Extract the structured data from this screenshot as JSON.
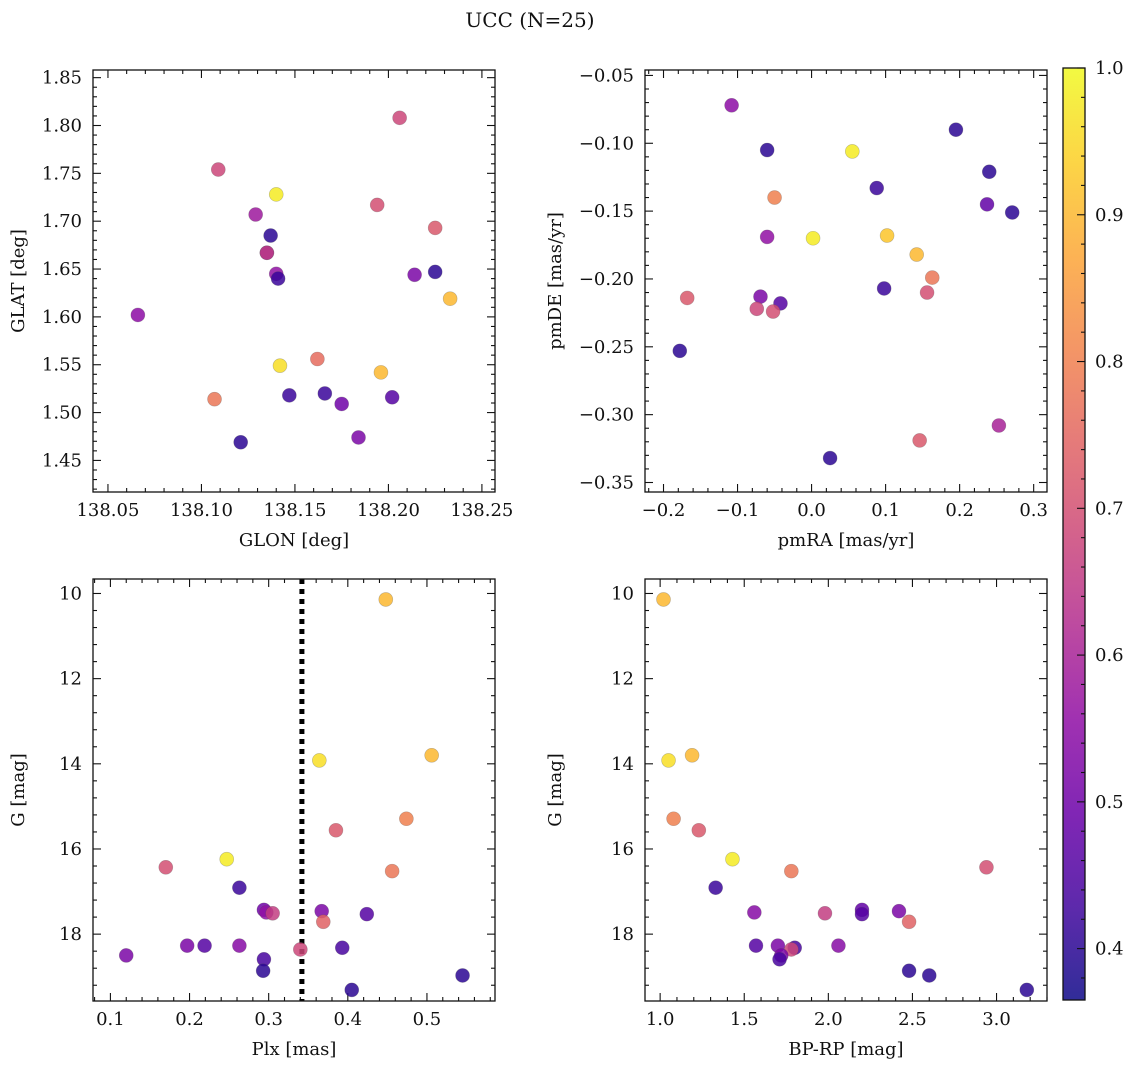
{
  "figure": {
    "title": "UCC (N=25)"
  },
  "colorbar": {
    "range": [
      0.365,
      1.0
    ],
    "ticks": [
      0.4,
      0.5,
      0.6,
      0.7,
      0.8,
      0.9,
      1.0
    ],
    "tick_labels": [
      "0.4",
      "0.5",
      "0.6",
      "0.7",
      "0.8",
      "0.9",
      "1.0"
    ],
    "colormap": "plasma"
  },
  "chart_data": [
    {
      "type": "scatter",
      "id": "glon-glat",
      "xlabel": "GLON [deg]",
      "ylabel": "GLAT [deg]",
      "xlim": [
        138.042,
        138.257
      ],
      "ylim": [
        1.417,
        1.858
      ],
      "xticks": [
        138.05,
        138.1,
        138.15,
        138.2,
        138.25
      ],
      "xtick_labels": [
        "138.05",
        "138.10",
        "138.15",
        "138.20",
        "138.25"
      ],
      "yticks": [
        1.45,
        1.5,
        1.55,
        1.6,
        1.65,
        1.7,
        1.75,
        1.8,
        1.85
      ],
      "ytick_labels": [
        "1.45",
        "1.50",
        "1.55",
        "1.60",
        "1.65",
        "1.70",
        "1.75",
        "1.80",
        "1.85"
      ],
      "points": [
        {
          "x": 138.066,
          "y": 1.602,
          "c": 0.55
        },
        {
          "x": 138.109,
          "y": 1.754,
          "c": 0.68
        },
        {
          "x": 138.129,
          "y": 1.707,
          "c": 0.58
        },
        {
          "x": 138.14,
          "y": 1.728,
          "c": 0.98
        },
        {
          "x": 138.137,
          "y": 1.685,
          "c": 0.4
        },
        {
          "x": 138.135,
          "y": 1.667,
          "c": 0.48
        },
        {
          "x": 138.135,
          "y": 1.667,
          "c": 0.66
        },
        {
          "x": 138.14,
          "y": 1.645,
          "c": 0.56
        },
        {
          "x": 138.141,
          "y": 1.64,
          "c": 0.42
        },
        {
          "x": 138.206,
          "y": 1.808,
          "c": 0.68
        },
        {
          "x": 138.194,
          "y": 1.717,
          "c": 0.7
        },
        {
          "x": 138.225,
          "y": 1.693,
          "c": 0.72
        },
        {
          "x": 138.214,
          "y": 1.644,
          "c": 0.52
        },
        {
          "x": 138.225,
          "y": 1.647,
          "c": 0.4
        },
        {
          "x": 138.233,
          "y": 1.619,
          "c": 0.9
        },
        {
          "x": 138.142,
          "y": 1.549,
          "c": 0.96
        },
        {
          "x": 138.162,
          "y": 1.556,
          "c": 0.76
        },
        {
          "x": 138.196,
          "y": 1.542,
          "c": 0.9
        },
        {
          "x": 138.107,
          "y": 1.514,
          "c": 0.78
        },
        {
          "x": 138.147,
          "y": 1.518,
          "c": 0.42
        },
        {
          "x": 138.166,
          "y": 1.52,
          "c": 0.42
        },
        {
          "x": 138.175,
          "y": 1.509,
          "c": 0.5
        },
        {
          "x": 138.202,
          "y": 1.516,
          "c": 0.46
        },
        {
          "x": 138.184,
          "y": 1.474,
          "c": 0.52
        },
        {
          "x": 138.121,
          "y": 1.469,
          "c": 0.4
        }
      ]
    },
    {
      "type": "scatter",
      "id": "pmra-pmde",
      "xlabel": "pmRA [mas/yr]",
      "ylabel": "pmDE [mas/yr]",
      "xlim": [
        -0.225,
        0.318
      ],
      "ylim": [
        -0.357,
        -0.046
      ],
      "xticks": [
        -0.2,
        -0.1,
        0.0,
        0.1,
        0.2,
        0.3
      ],
      "xtick_labels": [
        "−0.2",
        "−0.1",
        "0.0",
        "0.1",
        "0.2",
        "0.3"
      ],
      "yticks": [
        -0.35,
        -0.3,
        -0.25,
        -0.2,
        -0.15,
        -0.1,
        -0.05
      ],
      "ytick_labels": [
        "−0.35",
        "−0.30",
        "−0.25",
        "−0.20",
        "−0.15",
        "−0.10",
        "−0.05"
      ],
      "points": [
        {
          "x": -0.108,
          "y": -0.072,
          "c": 0.55
        },
        {
          "x": -0.06,
          "y": -0.105,
          "c": 0.4
        },
        {
          "x": 0.055,
          "y": -0.106,
          "c": 0.98
        },
        {
          "x": 0.195,
          "y": -0.09,
          "c": 0.4
        },
        {
          "x": 0.24,
          "y": -0.121,
          "c": 0.4
        },
        {
          "x": 0.088,
          "y": -0.133,
          "c": 0.42
        },
        {
          "x": -0.05,
          "y": -0.14,
          "c": 0.8
        },
        {
          "x": 0.237,
          "y": -0.145,
          "c": 0.48
        },
        {
          "x": 0.271,
          "y": -0.151,
          "c": 0.4
        },
        {
          "x": -0.06,
          "y": -0.169,
          "c": 0.56
        },
        {
          "x": 0.002,
          "y": -0.17,
          "c": 0.98
        },
        {
          "x": 0.102,
          "y": -0.168,
          "c": 0.92
        },
        {
          "x": 0.142,
          "y": -0.182,
          "c": 0.9
        },
        {
          "x": 0.163,
          "y": -0.199,
          "c": 0.78
        },
        {
          "x": 0.098,
          "y": -0.207,
          "c": 0.42
        },
        {
          "x": 0.156,
          "y": -0.21,
          "c": 0.7
        },
        {
          "x": -0.168,
          "y": -0.214,
          "c": 0.72
        },
        {
          "x": -0.069,
          "y": -0.213,
          "c": 0.52
        },
        {
          "x": -0.042,
          "y": -0.218,
          "c": 0.46
        },
        {
          "x": -0.074,
          "y": -0.222,
          "c": 0.68
        },
        {
          "x": -0.052,
          "y": -0.224,
          "c": 0.7
        },
        {
          "x": -0.178,
          "y": -0.253,
          "c": 0.4
        },
        {
          "x": 0.253,
          "y": -0.308,
          "c": 0.6
        },
        {
          "x": 0.146,
          "y": -0.319,
          "c": 0.72
        },
        {
          "x": 0.025,
          "y": -0.332,
          "c": 0.4
        }
      ]
    },
    {
      "type": "scatter",
      "id": "plx-g",
      "xlabel": "Plx [mas]",
      "ylabel": "G [mag]",
      "xlim": [
        0.078,
        0.586
      ],
      "ylim": [
        19.57,
        9.66
      ],
      "y_inverted": true,
      "xticks": [
        0.1,
        0.2,
        0.3,
        0.4,
        0.5
      ],
      "xtick_labels": [
        "0.1",
        "0.2",
        "0.3",
        "0.4",
        "0.5"
      ],
      "yticks": [
        10,
        12,
        14,
        16,
        18
      ],
      "ytick_labels": [
        "10",
        "12",
        "14",
        "16",
        "18"
      ],
      "reference_line": {
        "x": 0.342,
        "style": "dotted"
      },
      "points": [
        {
          "x": 0.448,
          "y": 10.14,
          "c": 0.9
        },
        {
          "x": 0.364,
          "y": 13.92,
          "c": 0.96
        },
        {
          "x": 0.506,
          "y": 13.8,
          "c": 0.9
        },
        {
          "x": 0.385,
          "y": 15.56,
          "c": 0.72
        },
        {
          "x": 0.474,
          "y": 15.29,
          "c": 0.8
        },
        {
          "x": 0.17,
          "y": 16.43,
          "c": 0.7
        },
        {
          "x": 0.247,
          "y": 16.24,
          "c": 0.98
        },
        {
          "x": 0.456,
          "y": 16.52,
          "c": 0.78
        },
        {
          "x": 0.263,
          "y": 16.91,
          "c": 0.42
        },
        {
          "x": 0.294,
          "y": 17.43,
          "c": 0.5
        },
        {
          "x": 0.297,
          "y": 17.49,
          "c": 0.56
        },
        {
          "x": 0.305,
          "y": 17.51,
          "c": 0.66
        },
        {
          "x": 0.367,
          "y": 17.46,
          "c": 0.52
        },
        {
          "x": 0.369,
          "y": 17.71,
          "c": 0.74
        },
        {
          "x": 0.424,
          "y": 17.53,
          "c": 0.46
        },
        {
          "x": 0.197,
          "y": 18.27,
          "c": 0.52
        },
        {
          "x": 0.219,
          "y": 18.27,
          "c": 0.46
        },
        {
          "x": 0.263,
          "y": 18.27,
          "c": 0.54
        },
        {
          "x": 0.34,
          "y": 18.36,
          "c": 0.68
        },
        {
          "x": 0.393,
          "y": 18.32,
          "c": 0.44
        },
        {
          "x": 0.12,
          "y": 18.5,
          "c": 0.52
        },
        {
          "x": 0.294,
          "y": 18.59,
          "c": 0.44
        },
        {
          "x": 0.293,
          "y": 18.86,
          "c": 0.4
        },
        {
          "x": 0.545,
          "y": 18.97,
          "c": 0.4
        },
        {
          "x": 0.405,
          "y": 19.31,
          "c": 0.4
        }
      ]
    },
    {
      "type": "scatter",
      "id": "bprp-g",
      "xlabel": "BP-RP [mag]",
      "ylabel": "G [mag]",
      "xlim": [
        0.91,
        3.3
      ],
      "ylim": [
        19.57,
        9.66
      ],
      "y_inverted": true,
      "xticks": [
        1.0,
        1.5,
        2.0,
        2.5,
        3.0
      ],
      "xtick_labels": [
        "1.0",
        "1.5",
        "2.0",
        "2.5",
        "3.0"
      ],
      "yticks": [
        10,
        12,
        14,
        16,
        18
      ],
      "ytick_labels": [
        "10",
        "12",
        "14",
        "16",
        "18"
      ],
      "points": [
        {
          "x": 1.02,
          "y": 10.14,
          "c": 0.9
        },
        {
          "x": 1.05,
          "y": 13.92,
          "c": 0.96
        },
        {
          "x": 1.19,
          "y": 13.8,
          "c": 0.9
        },
        {
          "x": 1.08,
          "y": 15.29,
          "c": 0.8
        },
        {
          "x": 1.23,
          "y": 15.56,
          "c": 0.72
        },
        {
          "x": 1.43,
          "y": 16.24,
          "c": 0.98
        },
        {
          "x": 1.78,
          "y": 16.52,
          "c": 0.78
        },
        {
          "x": 2.94,
          "y": 16.43,
          "c": 0.7
        },
        {
          "x": 1.33,
          "y": 16.91,
          "c": 0.42
        },
        {
          "x": 1.56,
          "y": 17.49,
          "c": 0.54
        },
        {
          "x": 1.98,
          "y": 17.51,
          "c": 0.66
        },
        {
          "x": 2.2,
          "y": 17.43,
          "c": 0.48
        },
        {
          "x": 2.2,
          "y": 17.53,
          "c": 0.46
        },
        {
          "x": 2.42,
          "y": 17.46,
          "c": 0.52
        },
        {
          "x": 2.48,
          "y": 17.71,
          "c": 0.74
        },
        {
          "x": 1.57,
          "y": 18.27,
          "c": 0.46
        },
        {
          "x": 1.7,
          "y": 18.27,
          "c": 0.52
        },
        {
          "x": 1.8,
          "y": 18.32,
          "c": 0.44
        },
        {
          "x": 1.78,
          "y": 18.36,
          "c": 0.68
        },
        {
          "x": 2.06,
          "y": 18.27,
          "c": 0.54
        },
        {
          "x": 1.72,
          "y": 18.5,
          "c": 0.52
        },
        {
          "x": 1.71,
          "y": 18.59,
          "c": 0.44
        },
        {
          "x": 2.48,
          "y": 18.86,
          "c": 0.4
        },
        {
          "x": 2.6,
          "y": 18.97,
          "c": 0.4
        },
        {
          "x": 3.18,
          "y": 19.31,
          "c": 0.4
        }
      ]
    }
  ]
}
